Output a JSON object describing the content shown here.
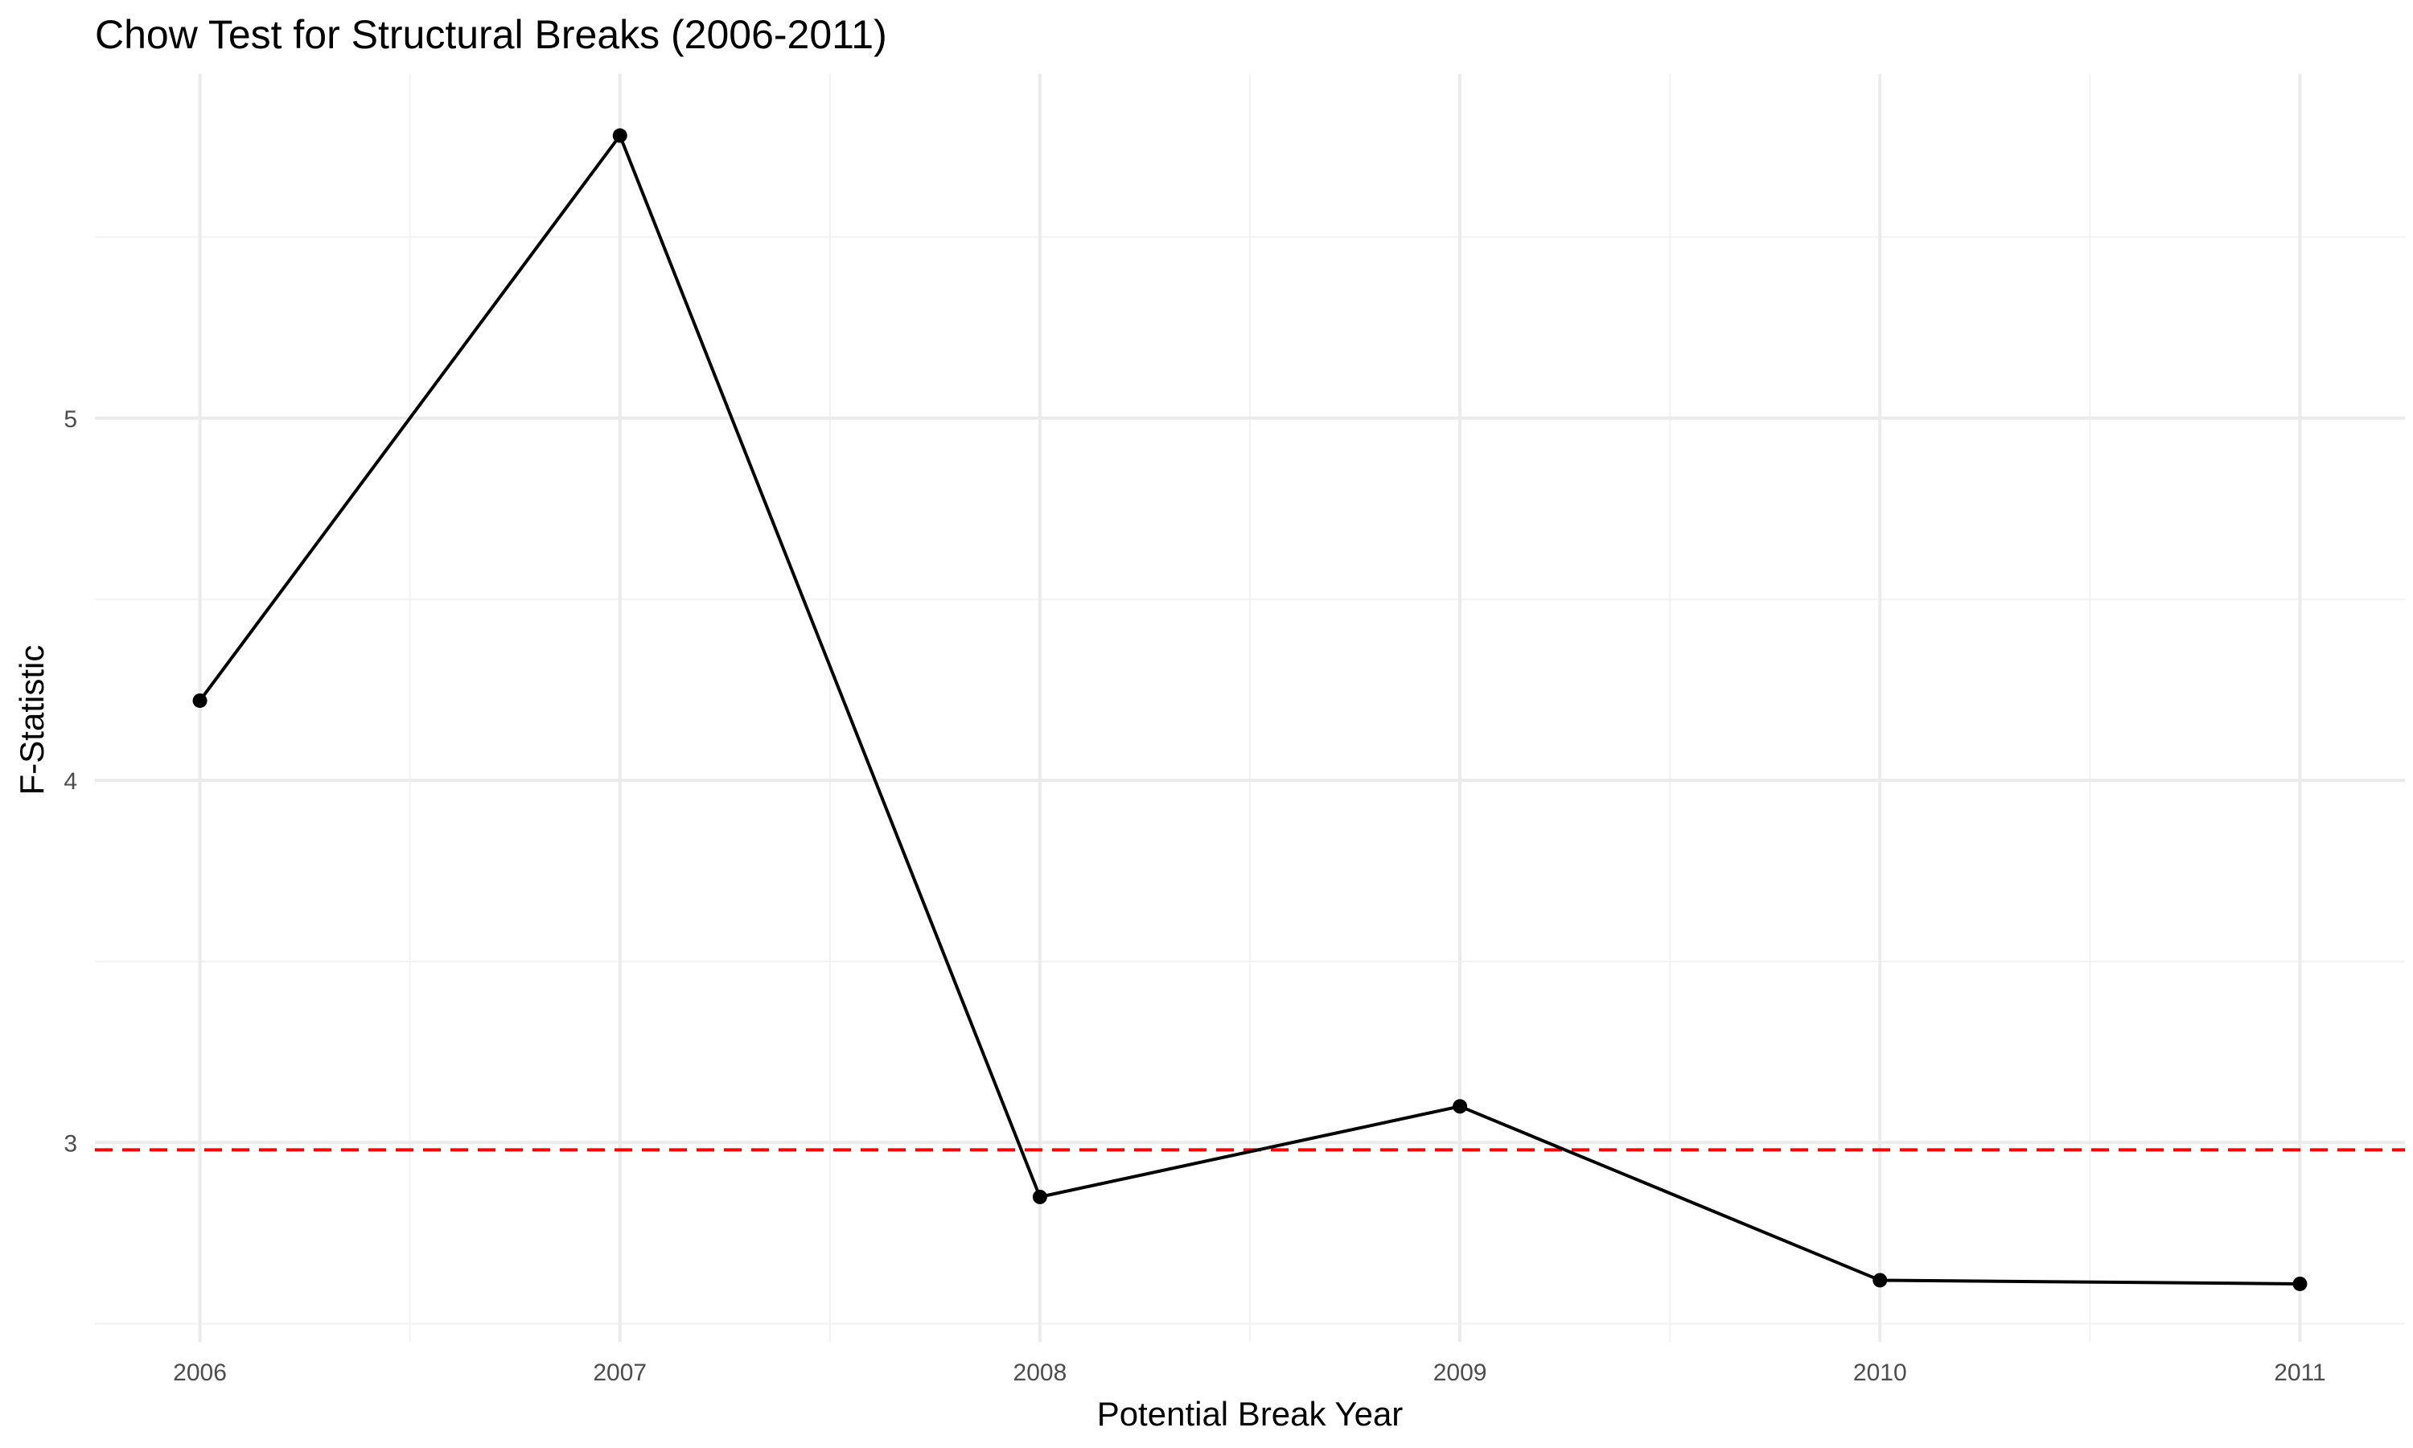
{
  "chart_data": {
    "type": "line",
    "title": "Chow Test for Structural Breaks (2006-2011)",
    "xlabel": "Potential Break Year",
    "ylabel": "F-Statistic",
    "x": [
      2006,
      2007,
      2008,
      2009,
      2010,
      2011
    ],
    "series": [
      {
        "values": [
          4.22,
          5.78,
          2.85,
          3.1,
          2.62,
          2.61
        ],
        "color": "#000000"
      }
    ],
    "xlim": [
      2005.75,
      2011.25
    ],
    "ylim": [
      2.45,
      5.95
    ],
    "x_ticks": [
      2006,
      2007,
      2008,
      2009,
      2010,
      2011
    ],
    "y_ticks": [
      3,
      4,
      5
    ],
    "reference_line": {
      "value": 2.98,
      "color": "#ff0000",
      "style": "dashed"
    },
    "grid": true,
    "legend": "none"
  }
}
